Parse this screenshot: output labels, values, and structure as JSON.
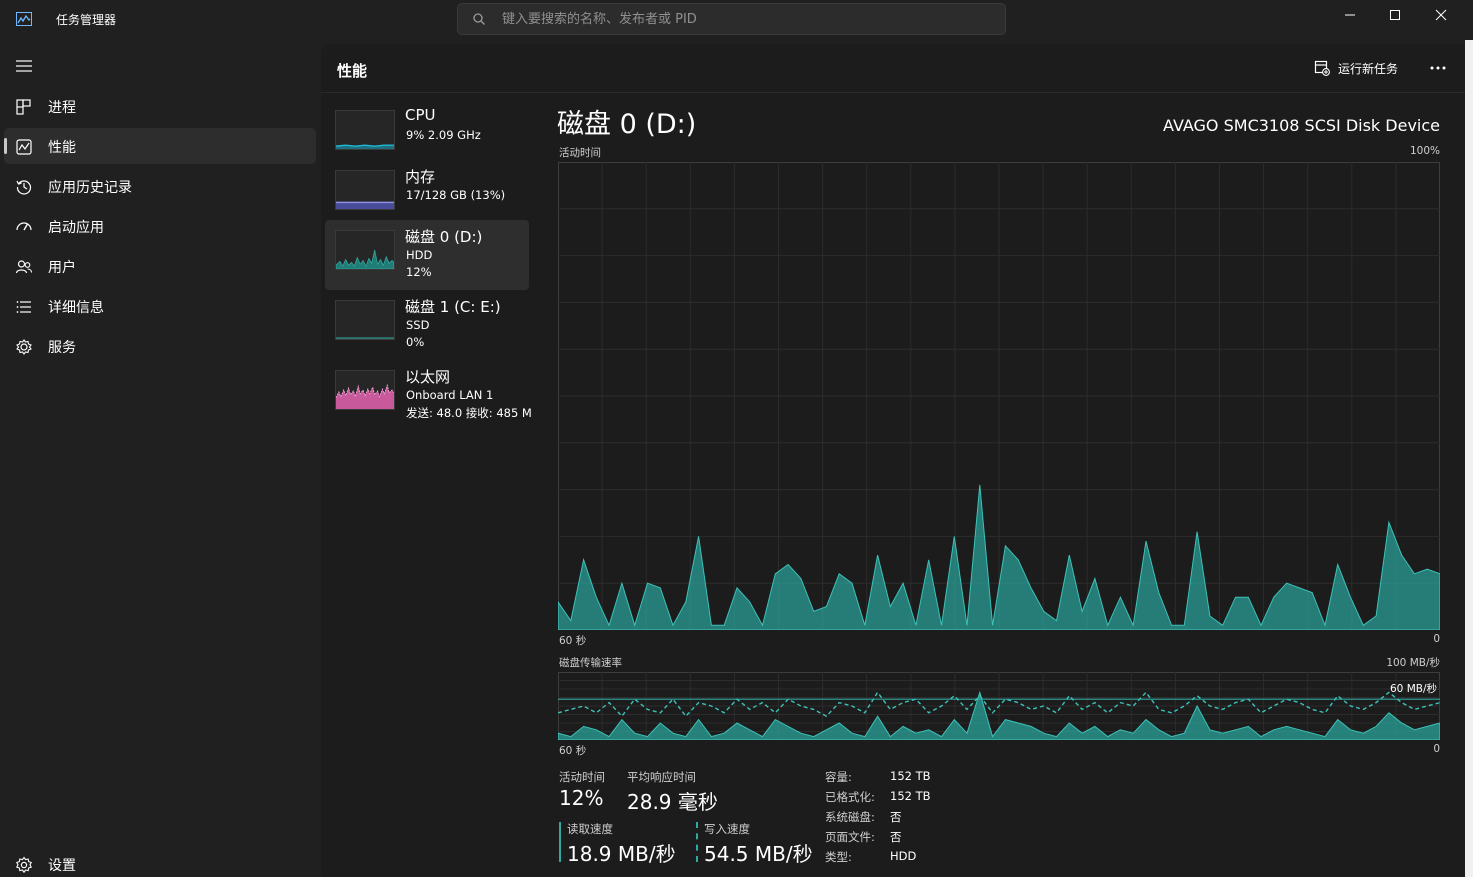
{
  "app": {
    "title": "任务管理器"
  },
  "search": {
    "placeholder": "键入要搜索的名称、发布者或 PID"
  },
  "nav": {
    "items": [
      {
        "label": "进程",
        "icon": "processes-icon"
      },
      {
        "label": "性能",
        "icon": "performance-icon",
        "active": true
      },
      {
        "label": "应用历史记录",
        "icon": "history-icon"
      },
      {
        "label": "启动应用",
        "icon": "startup-icon"
      },
      {
        "label": "用户",
        "icon": "users-icon"
      },
      {
        "label": "详细信息",
        "icon": "details-icon"
      },
      {
        "label": "服务",
        "icon": "services-icon"
      }
    ],
    "settings_label": "设置"
  },
  "header": {
    "title": "性能",
    "run_task_label": "运行新任务"
  },
  "resources": [
    {
      "name": "CPU",
      "sub1": "9% 2.09 GHz",
      "sub2": "",
      "color": "#1fb8d0"
    },
    {
      "name": "内存",
      "sub1": "17/128 GB (13%)",
      "sub2": "",
      "color": "#8c8fe0"
    },
    {
      "name": "磁盘 0 (D:)",
      "sub1": "HDD",
      "sub2": "12%",
      "color": "#31a8a0",
      "active": true
    },
    {
      "name": "磁盘 1 (C: E:)",
      "sub1": "SSD",
      "sub2": "0%",
      "color": "#31a8a0"
    },
    {
      "name": "以太网",
      "sub1": "Onboard LAN 1",
      "sub2": "发送: 48.0 接收: 485 M",
      "color": "#e37bb9"
    }
  ],
  "detail": {
    "title": "磁盘 0 (D:)",
    "model": "AVAGO SMC3108 SCSI Disk Device",
    "activity_label": "活动时间",
    "activity_max": "100%",
    "time_left": "60 秒",
    "time_right": "0",
    "transfer_label": "磁盘传输速率",
    "transfer_max": "100 MB/秒",
    "transfer_line_label": "60 MB/秒",
    "stats": {
      "active_time_label": "活动时间",
      "active_time_value": "12%",
      "response_label": "平均响应时间",
      "response_value": "28.9 毫秒",
      "read_label": "读取速度",
      "read_value": "18.9 MB/秒",
      "write_label": "写入速度",
      "write_value": "54.5 MB/秒"
    },
    "info": [
      {
        "label": "容量:",
        "value": "152 TB"
      },
      {
        "label": "已格式化:",
        "value": "152 TB"
      },
      {
        "label": "系统磁盘:",
        "value": "否"
      },
      {
        "label": "页面文件:",
        "value": "否"
      },
      {
        "label": "类型:",
        "value": "HDD"
      }
    ]
  },
  "chart_data": [
    {
      "type": "area",
      "title": "活动时间",
      "ylim": [
        0,
        100
      ],
      "x_range_seconds": [
        60,
        0
      ],
      "series": [
        {
          "values": [
            6,
            2,
            15,
            7,
            1,
            10,
            1,
            10,
            9,
            1,
            6,
            20,
            1,
            1,
            9,
            6,
            1,
            12,
            14,
            11,
            4,
            5,
            12,
            10,
            1,
            16,
            5,
            10,
            1,
            15,
            1,
            20,
            1,
            31,
            1,
            18,
            15,
            9,
            4,
            2,
            16,
            4,
            11,
            1,
            7,
            1,
            19,
            8,
            1,
            1,
            21,
            3,
            1,
            7,
            7,
            1,
            7,
            10,
            9,
            8,
            1,
            14,
            7,
            1,
            3,
            23,
            16,
            12,
            13,
            12
          ]
        }
      ],
      "color": "#2ba39b"
    },
    {
      "type": "area",
      "title": "磁盘传输速率",
      "ylim": [
        0,
        100
      ],
      "reference_line": 60,
      "x_range_seconds": [
        60,
        0
      ],
      "series": [
        {
          "name": "读取速度",
          "values": [
            10,
            5,
            20,
            15,
            5,
            30,
            10,
            5,
            25,
            10,
            5,
            30,
            5,
            10,
            25,
            15,
            5,
            30,
            20,
            10,
            5,
            15,
            25,
            10,
            5,
            35,
            5,
            20,
            10,
            15,
            5,
            30,
            10,
            70,
            5,
            30,
            25,
            20,
            10,
            5,
            25,
            10,
            20,
            5,
            15,
            10,
            30,
            15,
            5,
            10,
            50,
            15,
            10,
            15,
            20,
            5,
            15,
            20,
            15,
            10,
            5,
            30,
            15,
            10,
            20,
            40,
            25,
            15,
            20,
            25
          ]
        },
        {
          "name": "写入速度",
          "values": [
            40,
            45,
            50,
            40,
            55,
            35,
            60,
            45,
            40,
            60,
            35,
            55,
            50,
            40,
            60,
            45,
            55,
            40,
            60,
            50,
            45,
            35,
            55,
            50,
            40,
            70,
            45,
            55,
            60,
            40,
            50,
            65,
            45,
            65,
            40,
            60,
            55,
            45,
            50,
            40,
            65,
            45,
            55,
            40,
            55,
            50,
            70,
            45,
            40,
            50,
            65,
            50,
            45,
            55,
            60,
            40,
            50,
            60,
            55,
            45,
            40,
            65,
            50,
            45,
            55,
            70,
            55,
            45,
            50,
            55
          ]
        }
      ],
      "color": "#2ba39b"
    }
  ]
}
